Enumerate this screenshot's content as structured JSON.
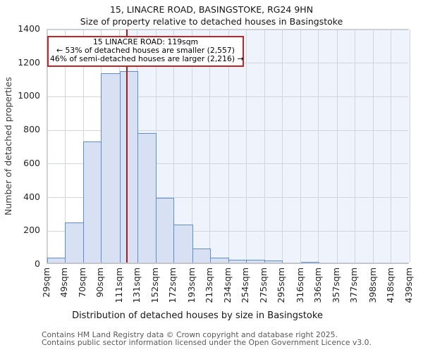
{
  "title": "15, LINACRE ROAD, BASINGSTOKE, RG24 9HN",
  "subtitle": "Size of property relative to detached houses in Basingstoke",
  "annotation": {
    "line1": "15 LINACRE ROAD: 119sqm",
    "line2": "← 53% of detached houses are smaller (2,557)",
    "line3": "46% of semi-detached houses are larger (2,216) →"
  },
  "chart_data": {
    "type": "bar",
    "title": "Size of property relative to detached houses in Basingstoke",
    "xlabel": "Distribution of detached houses by size in Basingstoke",
    "ylabel": "Number of detached properties",
    "bin_edges": [
      29,
      49,
      70,
      90,
      111,
      131,
      152,
      172,
      193,
      213,
      234,
      254,
      275,
      295,
      316,
      336,
      357,
      377,
      398,
      418,
      439
    ],
    "x_tick_labels": [
      "29sqm",
      "49sqm",
      "70sqm",
      "90sqm",
      "111sqm",
      "131sqm",
      "152sqm",
      "172sqm",
      "193sqm",
      "213sqm",
      "234sqm",
      "254sqm",
      "275sqm",
      "295sqm",
      "316sqm",
      "336sqm",
      "357sqm",
      "377sqm",
      "398sqm",
      "418sqm",
      "439sqm"
    ],
    "values": [
      30,
      240,
      722,
      1127,
      1140,
      773,
      386,
      228,
      85,
      30,
      18,
      15,
      12,
      0,
      5,
      0,
      0,
      0,
      0,
      0
    ],
    "xlim": [
      29,
      439
    ],
    "ylim": [
      0,
      1400
    ],
    "y_ticks": [
      0,
      200,
      400,
      600,
      800,
      1000,
      1200,
      1400
    ],
    "grid": true,
    "legend": "none",
    "marker_value": 119,
    "marker_label": "15 LINACRE ROAD: 119sqm",
    "colors": {
      "bar_fill": "#d8e1f3",
      "bar_edge": "#5f8fd1",
      "marker_line": "#aa1c1c",
      "annotation_border": "#c22525",
      "shade_region": "#eff3fb",
      "gridline": "#d2d5dc"
    }
  },
  "footer": {
    "line1": "Contains HM Land Registry data © Crown copyright and database right 2025.",
    "line2": "Contains public sector information licensed under the Open Government Licence v3.0."
  }
}
